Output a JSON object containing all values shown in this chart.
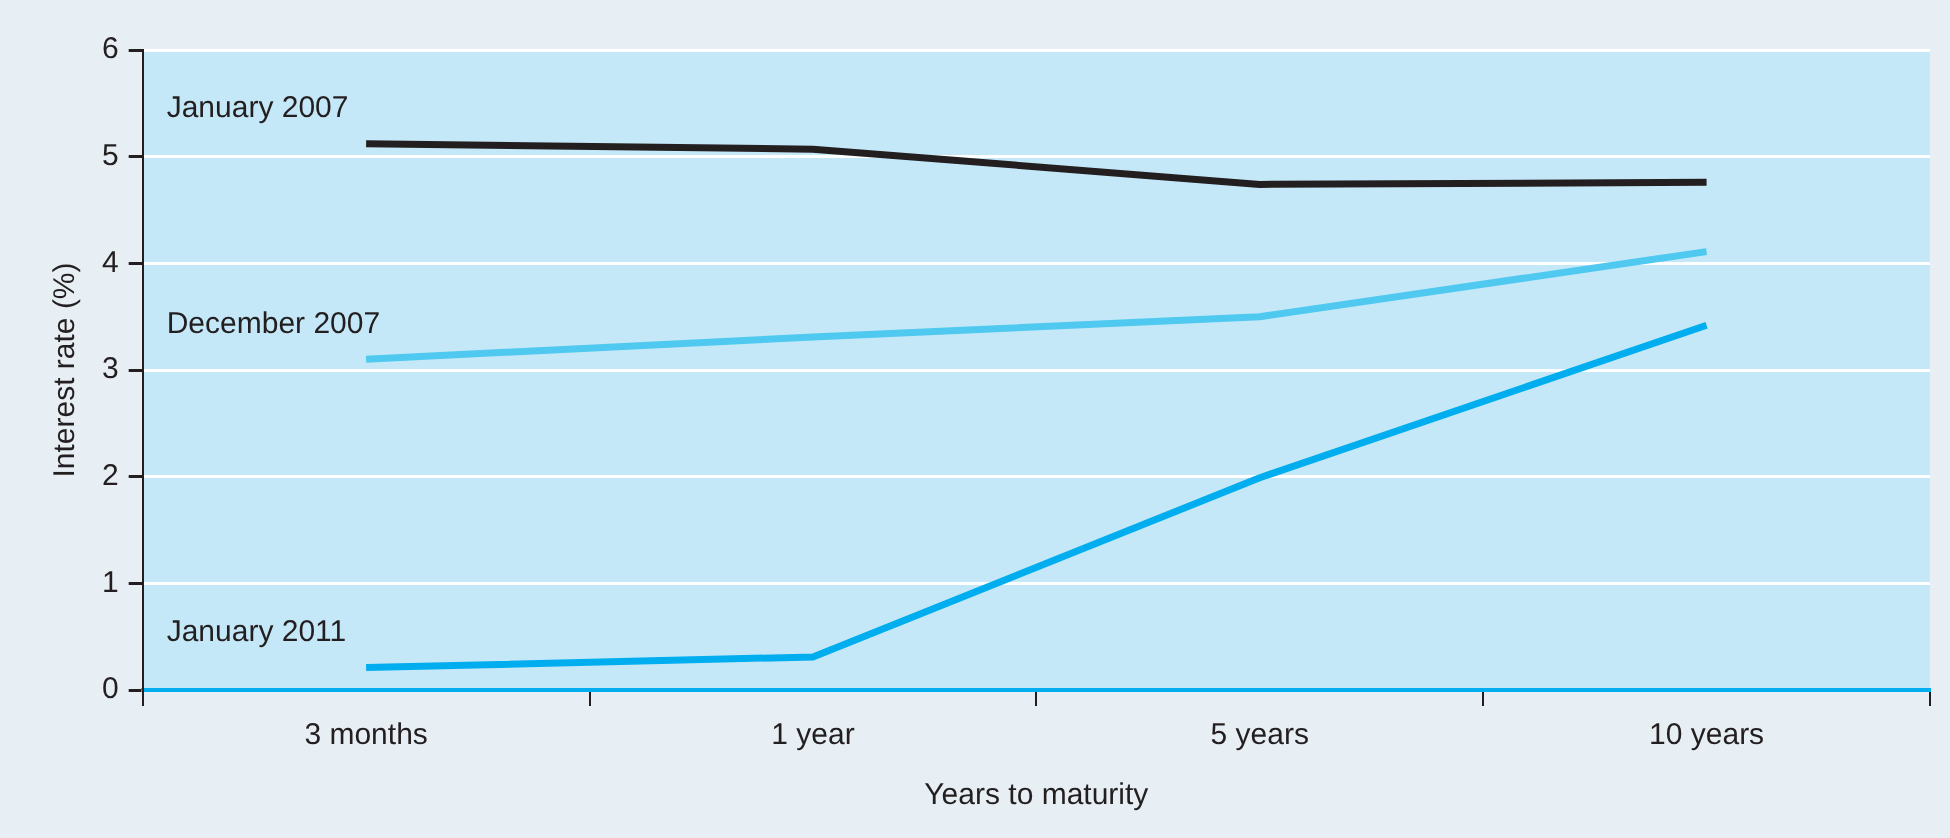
{
  "chart_data": {
    "type": "line",
    "xlabel": "Years to maturity",
    "ylabel": "Interest rate (%)",
    "categories": [
      "3 months",
      "1 year",
      "5 years",
      "10 years"
    ],
    "ylim": [
      0,
      6
    ],
    "yticks": [
      0,
      1,
      2,
      3,
      4,
      5,
      6
    ],
    "grid": "y",
    "legend": false,
    "marker": "none",
    "line_style": "solid",
    "series": [
      {
        "name": "January 2007",
        "color": "#231f20",
        "values": [
          5.12,
          5.07,
          4.74,
          4.76
        ]
      },
      {
        "name": "December 2007",
        "color": "#4fc9f0",
        "values": [
          3.1,
          3.31,
          3.5,
          4.11
        ]
      },
      {
        "name": "January 2011",
        "color": "#00aeef",
        "values": [
          0.21,
          0.31,
          1.99,
          3.42
        ]
      }
    ]
  }
}
